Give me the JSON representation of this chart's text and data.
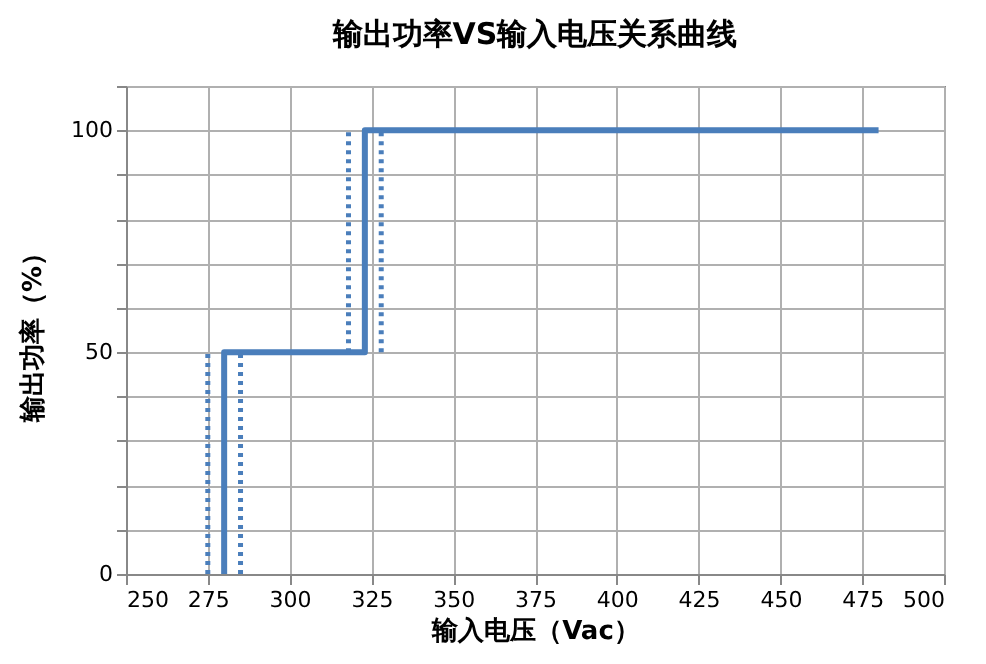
{
  "chart_data": {
    "type": "line",
    "title": "输出功率VS输入电压关系曲线",
    "xlabel": "输入电压（Vac）",
    "ylabel": "输出功率（%）",
    "xlim": [
      250,
      500
    ],
    "xticks": [
      250,
      275,
      300,
      325,
      350,
      375,
      400,
      425,
      450,
      475,
      500
    ],
    "ylim": [
      0,
      110
    ],
    "yticks": [
      0,
      {
        "value": 10,
        "label": null
      },
      {
        "value": 20,
        "label": null
      },
      {
        "value": 30,
        "label": null
      },
      {
        "value": 40,
        "label": null
      },
      50,
      {
        "value": 60,
        "label": null
      },
      {
        "value": 70,
        "label": null
      },
      {
        "value": 80,
        "label": null
      },
      {
        "value": 90,
        "label": null
      },
      100,
      {
        "value": 110,
        "label": null
      }
    ],
    "grid": true,
    "marker": "none",
    "series": [
      {
        "color": "#4a7ebb",
        "line_style": "solid",
        "x": [
          280,
          280,
          323,
          323,
          480
        ],
        "values": [
          0,
          50,
          50,
          100,
          100
        ]
      },
      {
        "color": "#4a7ebb",
        "line_style": "dotted",
        "x": [
          275,
          275
        ],
        "values": [
          0,
          50
        ]
      },
      {
        "color": "#4a7ebb",
        "line_style": "dotted",
        "x": [
          285,
          285
        ],
        "values": [
          0,
          50
        ]
      },
      {
        "color": "#4a7ebb",
        "line_style": "dotted",
        "x": [
          318,
          318
        ],
        "values": [
          50,
          100
        ]
      },
      {
        "color": "#4a7ebb",
        "line_style": "dotted",
        "x": [
          328,
          328
        ],
        "values": [
          50,
          100
        ]
      }
    ]
  }
}
